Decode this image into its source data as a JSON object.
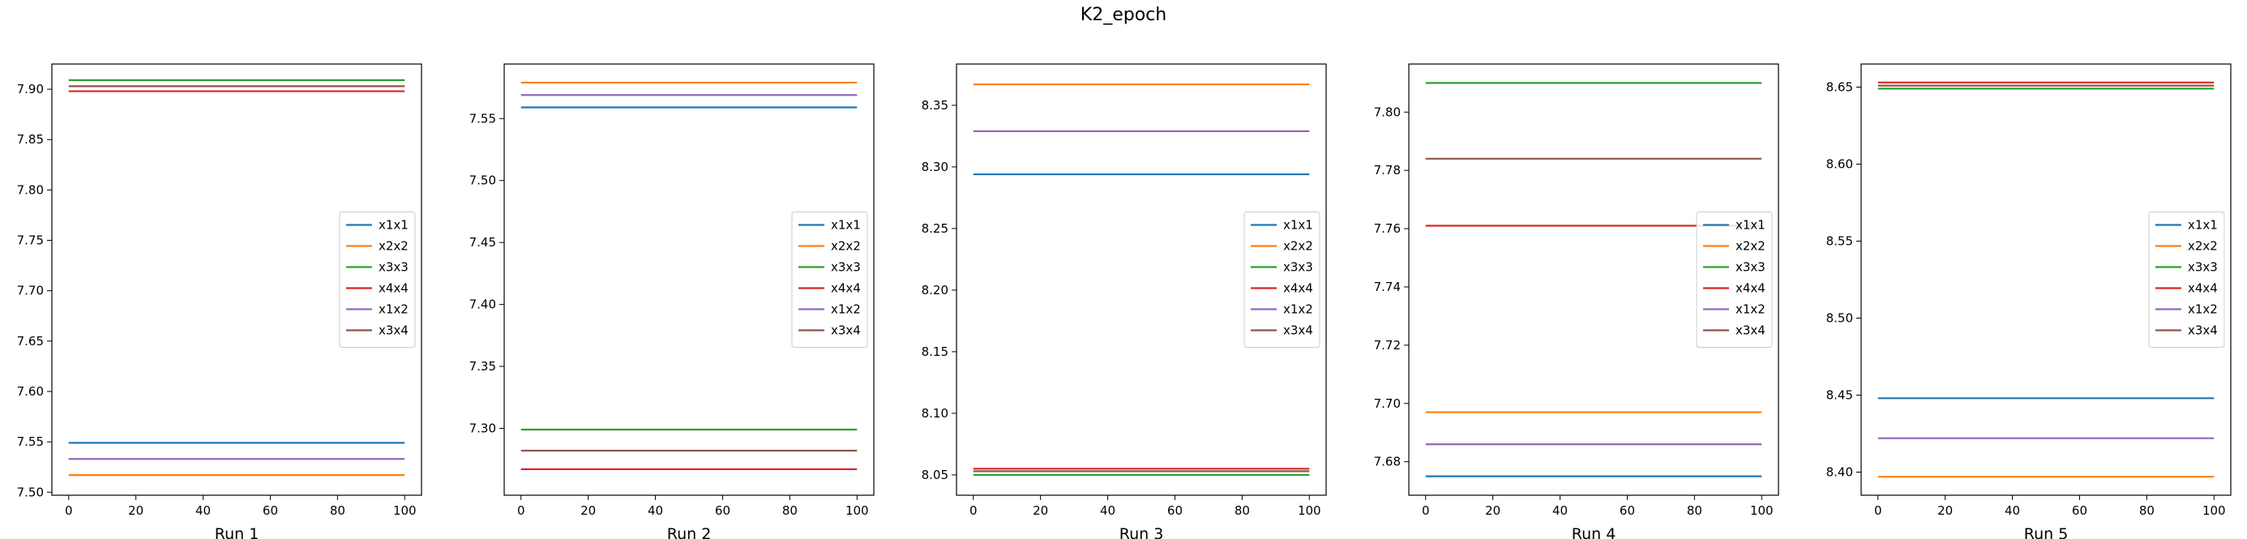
{
  "figure": {
    "suptitle": "K2_epoch"
  },
  "chart_data": [
    {
      "type": "line",
      "xlabel": "Run 1",
      "ylabel": "",
      "xlim": [
        -5,
        105
      ],
      "ylim": [
        7.497,
        7.925
      ],
      "x_ticks": [
        0,
        20,
        40,
        60,
        80,
        100
      ],
      "y_ticks": [
        7.5,
        7.55,
        7.6,
        7.65,
        7.7,
        7.75,
        7.8,
        7.85,
        7.9
      ],
      "y_tick_labels": [
        "7.50",
        "7.55",
        "7.60",
        "7.65",
        "7.70",
        "7.75",
        "7.80",
        "7.85",
        "7.90"
      ],
      "x": [
        0,
        100
      ],
      "legend": "center-right",
      "series": [
        {
          "name": "x1x1",
          "color": "#1f77b4",
          "values": [
            7.549,
            7.549
          ]
        },
        {
          "name": "x2x2",
          "color": "#ff7f0e",
          "values": [
            7.517,
            7.517
          ]
        },
        {
          "name": "x3x3",
          "color": "#2ca02c",
          "values": [
            7.909,
            7.909
          ]
        },
        {
          "name": "x4x4",
          "color": "#d62728",
          "values": [
            7.898,
            7.898
          ]
        },
        {
          "name": "x1x2",
          "color": "#9467bd",
          "values": [
            7.533,
            7.533
          ]
        },
        {
          "name": "x3x4",
          "color": "#8c564b",
          "values": [
            7.903,
            7.903
          ]
        }
      ]
    },
    {
      "type": "line",
      "xlabel": "Run 2",
      "ylabel": "",
      "xlim": [
        -5,
        105
      ],
      "ylim": [
        7.246,
        7.594
      ],
      "x_ticks": [
        0,
        20,
        40,
        60,
        80,
        100
      ],
      "y_ticks": [
        7.3,
        7.35,
        7.4,
        7.45,
        7.5,
        7.55
      ],
      "y_tick_labels": [
        "7.30",
        "7.35",
        "7.40",
        "7.45",
        "7.50",
        "7.55"
      ],
      "x": [
        0,
        100
      ],
      "legend": "center-right",
      "series": [
        {
          "name": "x1x1",
          "color": "#1f77b4",
          "values": [
            7.559,
            7.559
          ]
        },
        {
          "name": "x2x2",
          "color": "#ff7f0e",
          "values": [
            7.579,
            7.579
          ]
        },
        {
          "name": "x3x3",
          "color": "#2ca02c",
          "values": [
            7.299,
            7.299
          ]
        },
        {
          "name": "x4x4",
          "color": "#d62728",
          "values": [
            7.267,
            7.267
          ]
        },
        {
          "name": "x1x2",
          "color": "#9467bd",
          "values": [
            7.569,
            7.569
          ]
        },
        {
          "name": "x3x4",
          "color": "#8c564b",
          "values": [
            7.282,
            7.282
          ]
        }
      ]
    },
    {
      "type": "line",
      "xlabel": "Run 3",
      "ylabel": "",
      "xlim": [
        -5,
        105
      ],
      "ylim": [
        8.0335,
        8.3835
      ],
      "x_ticks": [
        0,
        20,
        40,
        60,
        80,
        100
      ],
      "y_ticks": [
        8.05,
        8.1,
        8.15,
        8.2,
        8.25,
        8.3,
        8.35
      ],
      "y_tick_labels": [
        "8.05",
        "8.10",
        "8.15",
        "8.20",
        "8.25",
        "8.30",
        "8.35"
      ],
      "x": [
        0,
        100
      ],
      "legend": "center-right",
      "series": [
        {
          "name": "x1x1",
          "color": "#1f77b4",
          "values": [
            8.294,
            8.294
          ]
        },
        {
          "name": "x2x2",
          "color": "#ff7f0e",
          "values": [
            8.367,
            8.367
          ]
        },
        {
          "name": "x3x3",
          "color": "#2ca02c",
          "values": [
            8.05,
            8.05
          ]
        },
        {
          "name": "x4x4",
          "color": "#d62728",
          "values": [
            8.055,
            8.055
          ]
        },
        {
          "name": "x1x2",
          "color": "#9467bd",
          "values": [
            8.329,
            8.329
          ]
        },
        {
          "name": "x3x4",
          "color": "#8c564b",
          "values": [
            8.053,
            8.053
          ]
        }
      ]
    },
    {
      "type": "line",
      "xlabel": "Run 4",
      "ylabel": "",
      "xlim": [
        -5,
        105
      ],
      "ylim": [
        7.6685,
        7.8165
      ],
      "x_ticks": [
        0,
        20,
        40,
        60,
        80,
        100
      ],
      "y_ticks": [
        7.68,
        7.7,
        7.72,
        7.74,
        7.76,
        7.78,
        7.8
      ],
      "y_tick_labels": [
        "7.68",
        "7.70",
        "7.72",
        "7.74",
        "7.76",
        "7.78",
        "7.80"
      ],
      "x": [
        0,
        100
      ],
      "legend": "center-right",
      "series": [
        {
          "name": "x1x1",
          "color": "#1f77b4",
          "values": [
            7.675,
            7.675
          ]
        },
        {
          "name": "x2x2",
          "color": "#ff7f0e",
          "values": [
            7.697,
            7.697
          ]
        },
        {
          "name": "x3x3",
          "color": "#2ca02c",
          "values": [
            7.81,
            7.81
          ]
        },
        {
          "name": "x4x4",
          "color": "#d62728",
          "values": [
            7.761,
            7.761
          ]
        },
        {
          "name": "x1x2",
          "color": "#9467bd",
          "values": [
            7.686,
            7.686
          ]
        },
        {
          "name": "x3x4",
          "color": "#8c564b",
          "values": [
            7.784,
            7.784
          ]
        }
      ]
    },
    {
      "type": "line",
      "xlabel": "Run 5",
      "ylabel": "",
      "xlim": [
        -5,
        105
      ],
      "ylim": [
        8.385,
        8.665
      ],
      "x_ticks": [
        0,
        20,
        40,
        60,
        80,
        100
      ],
      "y_ticks": [
        8.4,
        8.45,
        8.5,
        8.55,
        8.6,
        8.65
      ],
      "y_tick_labels": [
        "8.40",
        "8.45",
        "8.50",
        "8.55",
        "8.60",
        "8.65"
      ],
      "x": [
        0,
        100
      ],
      "legend": "center-right",
      "series": [
        {
          "name": "x1x1",
          "color": "#1f77b4",
          "values": [
            8.448,
            8.448
          ]
        },
        {
          "name": "x2x2",
          "color": "#ff7f0e",
          "values": [
            8.397,
            8.397
          ]
        },
        {
          "name": "x3x3",
          "color": "#2ca02c",
          "values": [
            8.649,
            8.649
          ]
        },
        {
          "name": "x4x4",
          "color": "#d62728",
          "values": [
            8.653,
            8.653
          ]
        },
        {
          "name": "x1x2",
          "color": "#9467bd",
          "values": [
            8.422,
            8.422
          ]
        },
        {
          "name": "x3x4",
          "color": "#8c564b",
          "values": [
            8.651,
            8.651
          ]
        }
      ]
    }
  ]
}
